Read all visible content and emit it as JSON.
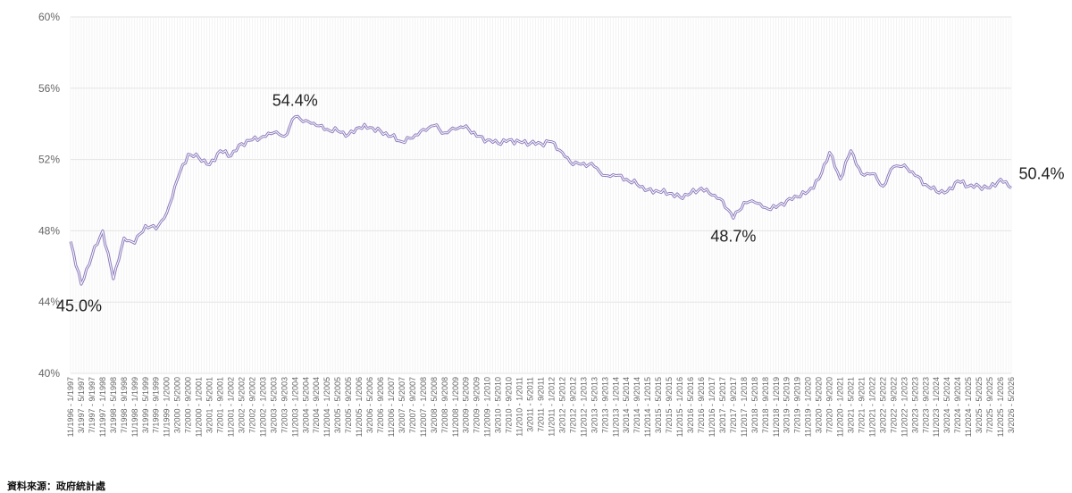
{
  "chart_data": {
    "type": "line",
    "title": "",
    "xlabel": "",
    "ylabel": "",
    "ylim": [
      40,
      60
    ],
    "yticks": [
      "40%",
      "44%",
      "48%",
      "52%",
      "56%",
      "60%"
    ],
    "grid": true,
    "line_color": "#a394c9",
    "x_labels": [
      "11/1996 - 1/1997",
      "3/1997 - 5/1997",
      "7/1997 - 9/1997",
      "11/1997 - 1/1998",
      "3/1998 - 5/1998",
      "7/1998 - 9/1998",
      "11/1998 - 1/1999",
      "3/1999 - 5/1999",
      "7/1999 - 9/1999",
      "11/1999 - 1/2000",
      "3/2000 - 5/2000",
      "7/2000 - 9/2000",
      "11/2000 - 1/2001",
      "3/2001 - 5/2001",
      "7/2001 - 9/2001",
      "11/2001 - 1/2002",
      "3/2002 - 5/2002",
      "7/2002 - 9/2002",
      "11/2002 - 1/2003",
      "3/2003 - 5/2003",
      "7/2003 - 9/2003",
      "11/2003 - 1/2004",
      "3/2004 - 5/2004",
      "7/2004 - 9/2004",
      "11/2004 - 1/2005",
      "3/2005 - 5/2005",
      "7/2005 - 9/2005",
      "11/2005 - 1/2006",
      "3/2006 - 5/2006",
      "7/2006 - 9/2006",
      "11/2006 - 1/2007",
      "3/2007 - 5/2007",
      "7/2007 - 9/2007",
      "11/2007 - 1/2008",
      "3/2008 - 5/2008",
      "7/2008 - 9/2008",
      "11/2008 - 1/2009",
      "3/2009 - 5/2009",
      "7/2009 - 9/2009",
      "11/2009 - 1/2010",
      "3/2010 - 5/2010",
      "7/2010 - 9/2010",
      "11/2010 - 1/2011",
      "3/2011 - 5/2011",
      "7/2011 - 9/2011",
      "11/2011 - 1/2012",
      "3/2012 - 5/2012",
      "7/2012 - 9/2012",
      "11/2012 - 1/2013",
      "3/2013 - 5/2013",
      "7/2013 - 9/2013",
      "11/2013 - 1/2014",
      "3/2014 - 5/2014",
      "7/2014 - 9/2014",
      "11/2014 - 1/2015",
      "3/2015 - 5/2015",
      "7/2015 - 9/2015",
      "11/2015 - 1/2016",
      "3/2016 - 5/2016",
      "7/2016 - 9/2016",
      "11/2016 - 1/2017",
      "3/2017 - 5/2017",
      "7/2017 - 9/2017",
      "11/2017 - 1/2018",
      "3/2018 - 5/2018",
      "7/2018 - 9/2018",
      "11/2018 - 1/2019",
      "3/2019 - 5/2019",
      "7/2019 - 9/2019",
      "11/2019 - 1/2020",
      "3/2020 - 5/2020",
      "7/2020 - 9/2020",
      "11/2020 - 1/2021",
      "3/2021 - 5/2021",
      "7/2021 - 9/2021",
      "11/2021 - 1/2022",
      "3/2022 - 5/2022",
      "7/2022 - 9/2022",
      "11/2022 - 1/2023",
      "3/2023 - 5/2023",
      "7/2023 - 9/2023",
      "11/2023 - 1/2024",
      "3/2024 - 5/2024",
      "7/2024 - 9/2024",
      "11/2024 - 1/2025",
      "3/2025 - 5/2025",
      "7/2025 - 9/2025",
      "11/2025 - 1/2026",
      "3/2026 - 5/2026"
    ],
    "anchors": [
      [
        "11/1996 - 1/1997",
        47.4
      ],
      [
        "3/1997 - 5/1997",
        45.0
      ],
      [
        "7/1997 - 9/1997",
        46.6
      ],
      [
        "11/1997 - 1/1998",
        48.0
      ],
      [
        "3/1998 - 5/1998",
        45.3
      ],
      [
        "7/1998 - 9/1998",
        47.6
      ],
      [
        "11/1998 - 1/1999",
        47.3
      ],
      [
        "3/1999 - 5/1999",
        48.3
      ],
      [
        "7/1999 - 9/1999",
        48.1
      ],
      [
        "11/1999 - 1/2000",
        49.0
      ],
      [
        "3/2000 - 5/2000",
        50.9
      ],
      [
        "7/2000 - 9/2000",
        52.3
      ],
      [
        "11/2000 - 1/2001",
        52.1
      ],
      [
        "3/2001 - 5/2001",
        51.7
      ],
      [
        "7/2001 - 9/2001",
        52.5
      ],
      [
        "11/2001 - 1/2002",
        52.2
      ],
      [
        "3/2002 - 5/2002",
        52.9
      ],
      [
        "7/2002 - 9/2002",
        53.1
      ],
      [
        "11/2002 - 1/2003",
        53.3
      ],
      [
        "3/2003 - 5/2003",
        53.5
      ],
      [
        "7/2003 - 9/2003",
        53.3
      ],
      [
        "11/2003 - 1/2004",
        54.4
      ],
      [
        "3/2004 - 5/2004",
        54.2
      ],
      [
        "7/2004 - 9/2004",
        53.9
      ],
      [
        "11/2004 - 1/2005",
        53.7
      ],
      [
        "3/2005 - 5/2005",
        53.6
      ],
      [
        "7/2005 - 9/2005",
        53.4
      ],
      [
        "11/2005 - 1/2006",
        53.8
      ],
      [
        "3/2006 - 5/2006",
        53.8
      ],
      [
        "7/2006 - 9/2006",
        53.6
      ],
      [
        "11/2006 - 1/2007",
        53.3
      ],
      [
        "3/2007 - 5/2007",
        53.0
      ],
      [
        "7/2007 - 9/2007",
        53.2
      ],
      [
        "11/2007 - 1/2008",
        53.7
      ],
      [
        "3/2008 - 5/2008",
        53.9
      ],
      [
        "7/2008 - 9/2008",
        53.5
      ],
      [
        "11/2008 - 1/2009",
        53.7
      ],
      [
        "3/2009 - 5/2009",
        53.9
      ],
      [
        "7/2009 - 9/2009",
        53.3
      ],
      [
        "11/2009 - 1/2010",
        53.1
      ],
      [
        "3/2010 - 5/2010",
        52.9
      ],
      [
        "7/2010 - 9/2010",
        53.1
      ],
      [
        "11/2010 - 1/2011",
        53.0
      ],
      [
        "3/2011 - 5/2011",
        52.9
      ],
      [
        "7/2011 - 9/2011",
        52.9
      ],
      [
        "11/2011 - 1/2012",
        53.0
      ],
      [
        "3/2012 - 5/2012",
        52.4
      ],
      [
        "7/2012 - 9/2012",
        51.7
      ],
      [
        "11/2012 - 1/2013",
        51.8
      ],
      [
        "3/2013 - 5/2013",
        51.6
      ],
      [
        "7/2013 - 9/2013",
        51.1
      ],
      [
        "11/2013 - 1/2014",
        51.1
      ],
      [
        "3/2014 - 5/2014",
        50.9
      ],
      [
        "7/2014 - 9/2014",
        50.6
      ],
      [
        "11/2014 - 1/2015",
        50.3
      ],
      [
        "3/2015 - 5/2015",
        50.2
      ],
      [
        "7/2015 - 9/2015",
        50.1
      ],
      [
        "11/2015 - 1/2016",
        49.9
      ],
      [
        "3/2016 - 5/2016",
        50.1
      ],
      [
        "7/2016 - 9/2016",
        50.4
      ],
      [
        "11/2016 - 1/2017",
        50.0
      ],
      [
        "3/2017 - 5/2017",
        49.7
      ],
      [
        "7/2017 - 9/2017",
        48.7
      ],
      [
        "11/2017 - 1/2018",
        49.6
      ],
      [
        "3/2018 - 5/2018",
        49.6
      ],
      [
        "7/2018 - 9/2018",
        49.3
      ],
      [
        "11/2018 - 1/2019",
        49.3
      ],
      [
        "3/2019 - 5/2019",
        49.7
      ],
      [
        "7/2019 - 9/2019",
        49.9
      ],
      [
        "11/2019 - 1/2020",
        50.2
      ],
      [
        "3/2020 - 5/2020",
        50.9
      ],
      [
        "7/2020 - 9/2020",
        52.4
      ],
      [
        "11/2020 - 1/2021",
        50.9
      ],
      [
        "3/2021 - 5/2021",
        52.5
      ],
      [
        "7/2021 - 9/2021",
        51.2
      ],
      [
        "11/2021 - 1/2022",
        51.2
      ],
      [
        "3/2022 - 5/2022",
        50.5
      ],
      [
        "7/2022 - 9/2022",
        51.6
      ],
      [
        "11/2022 - 1/2023",
        51.7
      ],
      [
        "3/2023 - 5/2023",
        51.1
      ],
      [
        "7/2023 - 9/2023",
        50.6
      ],
      [
        "11/2023 - 1/2024",
        50.2
      ],
      [
        "3/2024 - 5/2024",
        50.2
      ],
      [
        "7/2024 - 9/2024",
        50.8
      ],
      [
        "11/2024 - 1/2025",
        50.5
      ],
      [
        "3/2025 - 5/2025",
        50.5
      ],
      [
        "7/2025 - 9/2025",
        50.4
      ],
      [
        "11/2025 - 1/2026",
        50.9
      ],
      [
        "3/2026 - 5/2026",
        50.4
      ]
    ],
    "annotations": [
      {
        "text": "45.0%",
        "x": "3/1997 - 5/1997",
        "y": 45.0,
        "placement": "below"
      },
      {
        "text": "54.4%",
        "x": "11/2003 - 1/2004",
        "y": 54.4,
        "placement": "above"
      },
      {
        "text": "48.7%",
        "x": "7/2017 - 9/2017",
        "y": 48.7,
        "placement": "below"
      },
      {
        "text": "50.4%",
        "x": "3/2026 - 5/2026",
        "y": 50.4,
        "placement": "above"
      }
    ]
  },
  "footer": {
    "source": "資料來源：政府統計處"
  }
}
